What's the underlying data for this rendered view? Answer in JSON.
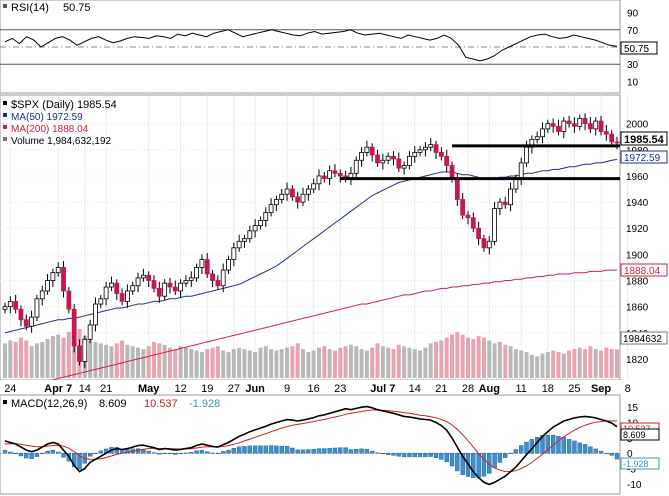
{
  "rsi_panel": {
    "title": "RSI(14)",
    "value_label": "50.75",
    "y_ticks": [
      "90",
      "70",
      "30",
      "10"
    ],
    "value_tag": "50.75",
    "series": [
      56,
      60,
      54,
      62,
      58,
      50,
      55,
      60,
      62,
      58,
      52,
      56,
      60,
      62,
      58,
      55,
      57,
      60,
      62,
      61,
      60,
      63,
      62,
      60,
      65,
      63,
      66,
      64,
      62,
      66,
      68,
      70,
      66,
      62,
      64,
      66,
      68,
      70,
      68,
      66,
      64,
      63,
      66,
      68,
      65,
      66,
      67,
      68,
      70,
      66,
      64,
      65,
      66,
      64,
      62,
      60,
      64,
      62,
      60,
      58,
      60,
      64,
      60,
      52,
      38,
      36,
      34,
      36,
      40,
      46,
      50,
      54,
      58,
      62,
      64,
      65,
      62,
      60,
      61,
      64,
      62,
      60,
      58,
      55,
      52,
      50.75
    ]
  },
  "price_panel": {
    "legend_title": "$SPX (Daily) 1985.54",
    "legend_ma50": "MA(50) 1972.59",
    "legend_ma200": "MA(200) 1888.04",
    "legend_volume": "Volume 1,984,632,192",
    "y_ticks": [
      "2000",
      "1980",
      "1960",
      "1940",
      "1920",
      "1900",
      "1880",
      "1860",
      "1840",
      "1820"
    ],
    "price_tag": "1985.54",
    "ma50_tag": "1972.59",
    "ma200_tag": "1888.04",
    "volume_tag": "1984632",
    "colors": {
      "up": "#ffffff",
      "down": "#c8174a",
      "ma50": "#1c2f8a",
      "ma200": "#d02040",
      "vol_up": "#b8b8b8",
      "vol_down": "#e8a3b0"
    },
    "support_lines": [
      1983,
      1958
    ]
  },
  "macd_panel": {
    "title": "MACD(12,26,9)",
    "macd_label": "8.609",
    "signal_label": "10.537",
    "hist_label": "-1.928",
    "y_ticks": [
      "15",
      "10",
      "5",
      "0",
      "-5",
      "-10"
    ],
    "signal_tag": "10.537",
    "macd_tag": "8.609",
    "hist_tag": "-1.928",
    "colors": {
      "macd": "#000000",
      "signal": "#d02020",
      "hist": "#3f8fcf"
    }
  },
  "x_axis": {
    "labels": [
      {
        "text": "24",
        "bold": false,
        "i": 1
      },
      {
        "text": "Apr 7",
        "bold": true,
        "i": 10
      },
      {
        "text": "14",
        "bold": false,
        "i": 15
      },
      {
        "text": "21",
        "bold": false,
        "i": 19
      },
      {
        "text": "May",
        "bold": true,
        "i": 27
      },
      {
        "text": "12",
        "bold": false,
        "i": 33
      },
      {
        "text": "19",
        "bold": false,
        "i": 38
      },
      {
        "text": "27",
        "bold": false,
        "i": 43
      },
      {
        "text": "Jun",
        "bold": true,
        "i": 47
      },
      {
        "text": "9",
        "bold": false,
        "i": 53
      },
      {
        "text": "16",
        "bold": false,
        "i": 58
      },
      {
        "text": "23",
        "bold": false,
        "i": 63
      },
      {
        "text": "Jul 7",
        "bold": true,
        "i": 71
      },
      {
        "text": "14",
        "bold": false,
        "i": 77
      },
      {
        "text": "21",
        "bold": false,
        "i": 82
      },
      {
        "text": "28",
        "bold": false,
        "i": 87
      },
      {
        "text": "Aug",
        "bold": true,
        "i": 91
      },
      {
        "text": "11",
        "bold": false,
        "i": 97
      },
      {
        "text": "18",
        "bold": false,
        "i": 102
      },
      {
        "text": "25",
        "bold": false,
        "i": 107
      },
      {
        "text": "Sep",
        "bold": true,
        "i": 112
      },
      {
        "text": "8",
        "bold": false,
        "i": 117
      }
    ]
  },
  "chart_data": {
    "type": "candlestick",
    "title": "$SPX (Daily)",
    "ylim": [
      1810,
      2012
    ],
    "close": [
      1860,
      1864,
      1858,
      1850,
      1845,
      1852,
      1866,
      1872,
      1880,
      1886,
      1890,
      1872,
      1858,
      1830,
      1818,
      1835,
      1846,
      1862,
      1866,
      1875,
      1878,
      1870,
      1864,
      1872,
      1876,
      1882,
      1884,
      1880,
      1874,
      1868,
      1878,
      1875,
      1872,
      1878,
      1880,
      1882,
      1890,
      1896,
      1885,
      1880,
      1876,
      1888,
      1896,
      1905,
      1910,
      1912,
      1918,
      1922,
      1926,
      1932,
      1938,
      1942,
      1946,
      1950,
      1944,
      1940,
      1946,
      1950,
      1954,
      1960,
      1958,
      1964,
      1962,
      1960,
      1958,
      1962,
      1972,
      1978,
      1982,
      1976,
      1970,
      1972,
      1975,
      1973,
      1966,
      1968,
      1975,
      1978,
      1980,
      1982,
      1984,
      1978,
      1975,
      1968,
      1958,
      1942,
      1930,
      1928,
      1920,
      1912,
      1905,
      1910,
      1935,
      1940,
      1938,
      1950,
      1958,
      1970,
      1982,
      1988,
      1990,
      1996,
      2000,
      1998,
      1994,
      2002,
      2000,
      1998,
      2004,
      2000,
      1996,
      2002,
      1994,
      1992,
      1986,
      1985.54
    ],
    "volume": [
      2.4,
      2.6,
      2.5,
      2.8,
      2.6,
      2.2,
      2.4,
      2.5,
      2.7,
      2.9,
      3.0,
      2.8,
      3.2,
      3.6,
      3.4,
      2.9,
      2.6,
      2.5,
      2.4,
      2.3,
      2.2,
      2.4,
      2.6,
      2.3,
      2.2,
      2.1,
      2.0,
      2.2,
      2.5,
      2.4,
      2.3,
      2.1,
      2.0,
      2.2,
      2.1,
      2.0,
      1.9,
      1.8,
      2.0,
      2.1,
      2.2,
      1.9,
      1.8,
      2.0,
      2.1,
      2.0,
      1.9,
      1.8,
      2.1,
      2.2,
      2.0,
      1.9,
      2.0,
      2.1,
      2.2,
      2.4,
      2.0,
      1.8,
      1.9,
      2.1,
      2.2,
      2.0,
      1.9,
      2.1,
      2.2,
      2.3,
      2.2,
      2.0,
      1.9,
      2.1,
      2.4,
      2.2,
      2.1,
      2.0,
      2.3,
      2.2,
      2.1,
      2.0,
      1.9,
      2.1,
      2.4,
      2.5,
      2.6,
      2.8,
      3.0,
      3.2,
      3.0,
      2.8,
      2.7,
      2.9,
      2.8,
      2.6,
      2.4,
      2.5,
      2.3,
      2.2,
      2.0,
      1.9,
      1.8,
      1.6,
      1.5,
      1.7,
      1.8,
      1.9,
      1.8,
      1.7,
      1.9,
      2.0,
      2.1,
      2.0,
      2.2,
      2.0,
      1.9,
      2.1,
      2.0,
      1.98
    ],
    "ma50": [
      1840,
      1841,
      1842,
      1843,
      1844,
      1845,
      1846,
      1847,
      1848,
      1849,
      1850,
      1850,
      1851,
      1851,
      1852,
      1853,
      1854,
      1855,
      1856,
      1857,
      1858,
      1859,
      1859,
      1860,
      1861,
      1862,
      1862,
      1863,
      1864,
      1864,
      1865,
      1866,
      1866,
      1867,
      1868,
      1868,
      1869,
      1870,
      1871,
      1872,
      1873,
      1874,
      1875,
      1876,
      1877,
      1879,
      1881,
      1883,
      1885,
      1887,
      1889,
      1891,
      1894,
      1897,
      1900,
      1903,
      1906,
      1909,
      1912,
      1915,
      1918,
      1921,
      1924,
      1927,
      1930,
      1933,
      1936,
      1939,
      1942,
      1945,
      1947,
      1949,
      1951,
      1953,
      1955,
      1956,
      1957,
      1958,
      1959,
      1960,
      1961,
      1962,
      1963,
      1963,
      1963,
      1962,
      1961,
      1961,
      1960,
      1959,
      1958,
      1958,
      1958,
      1959,
      1959,
      1960,
      1960,
      1961,
      1962,
      1962,
      1963,
      1964,
      1964,
      1965,
      1965,
      1966,
      1967,
      1967,
      1968,
      1969,
      1969,
      1970,
      1970,
      1971,
      1972,
      1972.59
    ],
    "ma200": [
      1795,
      1796,
      1797,
      1798,
      1799,
      1800,
      1801,
      1802,
      1803,
      1804,
      1805,
      1806,
      1807,
      1808,
      1809,
      1810,
      1811,
      1812,
      1813,
      1814,
      1815,
      1816,
      1817,
      1818,
      1819,
      1820,
      1821,
      1822,
      1823,
      1824,
      1825,
      1826,
      1827,
      1828,
      1829,
      1830,
      1831,
      1832,
      1833,
      1834,
      1835,
      1836,
      1837,
      1838,
      1839,
      1840,
      1841,
      1842,
      1843,
      1844,
      1845,
      1846,
      1847,
      1848,
      1849,
      1850,
      1851,
      1852,
      1853,
      1854,
      1855,
      1856,
      1857,
      1858,
      1859,
      1860,
      1861,
      1862,
      1862,
      1863,
      1864,
      1865,
      1866,
      1867,
      1868,
      1869,
      1869,
      1870,
      1871,
      1872,
      1872,
      1873,
      1874,
      1874,
      1875,
      1875,
      1876,
      1876,
      1877,
      1877,
      1878,
      1878,
      1879,
      1879,
      1880,
      1880,
      1881,
      1881,
      1882,
      1882,
      1883,
      1883,
      1884,
      1884,
      1885,
      1885,
      1885,
      1886,
      1886,
      1886,
      1887,
      1887,
      1887,
      1888,
      1888,
      1888.04
    ],
    "macd": [
      4,
      3.5,
      3,
      2,
      1,
      0.5,
      1,
      2,
      3,
      3.5,
      3,
      1,
      -1,
      -4,
      -6,
      -5,
      -3,
      -2,
      -1,
      0,
      1,
      1.5,
      1.2,
      1.5,
      2,
      2.5,
      2.6,
      2.2,
      1.8,
      1.2,
      1.5,
      1.3,
      1,
      1.2,
      1.5,
      1.8,
      2.5,
      3,
      2.6,
      2.2,
      2,
      2.8,
      3.5,
      4.5,
      5.5,
      6.2,
      7,
      7.6,
      8.2,
      8.8,
      9.5,
      10,
      10.5,
      11,
      10.8,
      10.5,
      10.8,
      11.2,
      11.6,
      12.2,
      12.5,
      13,
      13.5,
      14,
      14.5,
      14.2,
      14.6,
      15,
      15.2,
      14.8,
      14.2,
      13.8,
      13.4,
      13,
      12.5,
      12,
      11.8,
      11.5,
      11.2,
      11,
      10.8,
      10,
      9,
      7.5,
      5,
      2,
      -1,
      -3.5,
      -6,
      -8,
      -9.5,
      -10.2,
      -9.5,
      -8.5,
      -7.5,
      -6,
      -4.5,
      -2.5,
      -0.5,
      1.5,
      3.5,
      5.5,
      7,
      8.5,
      9.5,
      10.5,
      11,
      11.5,
      11.8,
      12,
      11.8,
      11.5,
      11,
      10.5,
      9.8,
      8.609
    ],
    "signal": [
      3,
      3.1,
      3.1,
      2.9,
      2.6,
      2.3,
      2.1,
      2.1,
      2.3,
      2.5,
      2.6,
      2.3,
      1.6,
      0.5,
      -0.8,
      -1.7,
      -2,
      -2,
      -1.8,
      -1.4,
      -0.9,
      -0.4,
      0,
      0.3,
      0.6,
      1,
      1.3,
      1.5,
      1.6,
      1.5,
      1.5,
      1.5,
      1.4,
      1.4,
      1.4,
      1.5,
      1.7,
      2,
      2.1,
      2.1,
      2.1,
      2.2,
      2.5,
      2.9,
      3.4,
      4,
      4.6,
      5.2,
      5.8,
      6.4,
      7,
      7.6,
      8.2,
      8.7,
      9.1,
      9.4,
      9.7,
      10,
      10.3,
      10.7,
      11,
      11.4,
      11.8,
      12.2,
      12.7,
      13,
      13.3,
      13.6,
      13.9,
      14.1,
      14.1,
      14,
      13.9,
      13.7,
      13.5,
      13.2,
      13,
      12.7,
      12.4,
      12.2,
      11.9,
      11.5,
      11,
      10.3,
      9.2,
      7.8,
      6,
      4.1,
      2,
      -0.1,
      -2,
      -3.6,
      -4.8,
      -5.5,
      -6,
      -6,
      -5.7,
      -5,
      -4.1,
      -3,
      -1.7,
      -0.3,
      1.1,
      2.6,
      4,
      5.3,
      6.5,
      7.5,
      8.4,
      9.1,
      9.7,
      10.1,
      10.3,
      10.5,
      10.5,
      10.537
    ]
  }
}
